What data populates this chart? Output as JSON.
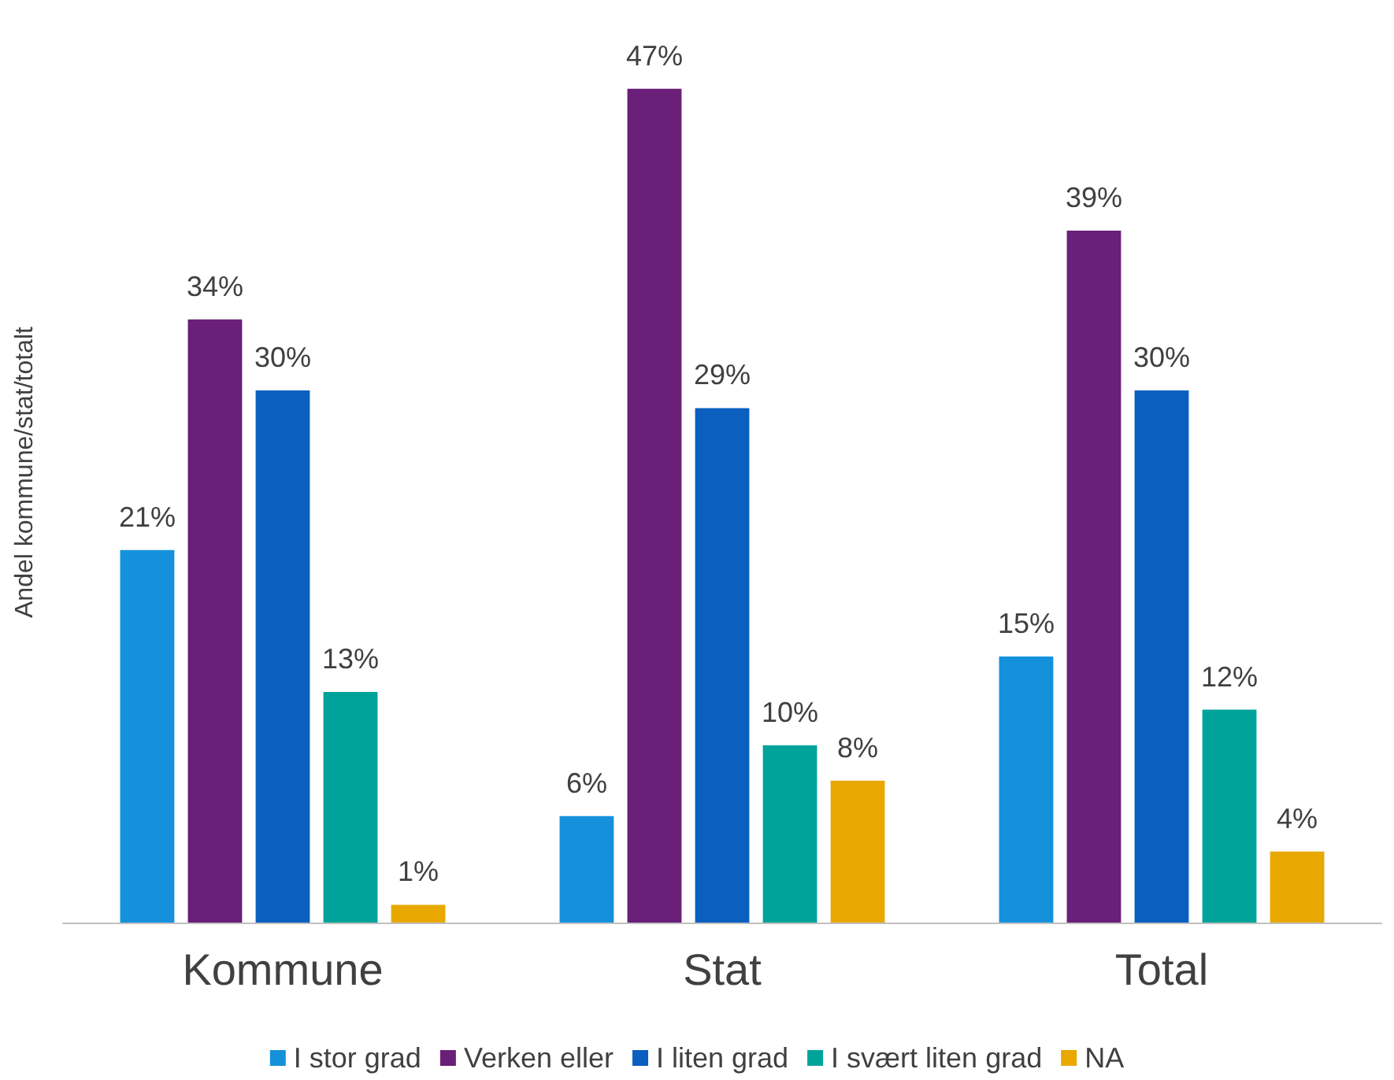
{
  "chart_data": {
    "type": "bar",
    "ylabel": "Andel kommune/stat/totalt",
    "categories": [
      "Kommune",
      "Stat",
      "Total"
    ],
    "series": [
      {
        "name": "I stor grad",
        "color": "#1591dc",
        "values": [
          21,
          6,
          15
        ],
        "value_labels": [
          "21%",
          "6%",
          "15%"
        ]
      },
      {
        "name": "Verken eller",
        "color": "#6a1f78",
        "values": [
          34,
          47,
          39
        ],
        "value_labels": [
          "34%",
          "47%",
          "39%"
        ]
      },
      {
        "name": "I liten grad",
        "color": "#0a5fbf",
        "values": [
          30,
          29,
          30
        ],
        "value_labels": [
          "30%",
          "29%",
          "30%"
        ]
      },
      {
        "name": "I svært liten grad",
        "color": "#00a39a",
        "values": [
          13,
          10,
          12
        ],
        "value_labels": [
          "13%",
          "10%",
          "12%"
        ]
      },
      {
        "name": "NA",
        "color": "#e8a800",
        "values": [
          1,
          8,
          4
        ],
        "value_labels": [
          "1%",
          "8%",
          "4%"
        ]
      }
    ],
    "legend": "bottom",
    "grid": false
  }
}
